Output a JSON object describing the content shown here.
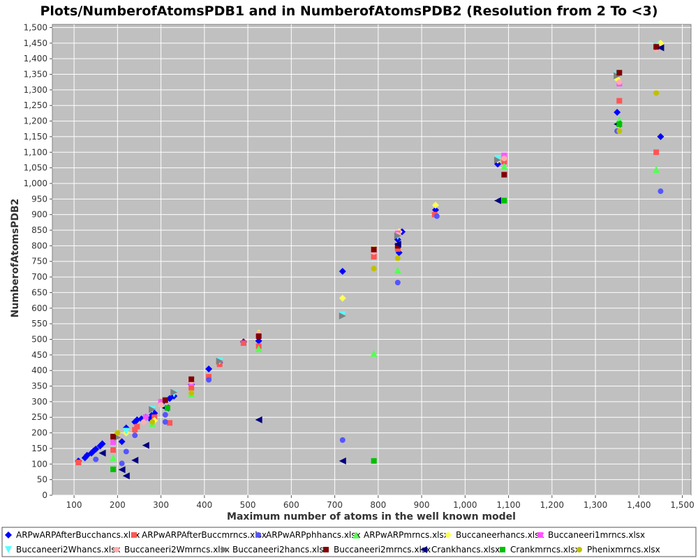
{
  "chart_data": {
    "type": "scatter",
    "title": "Plots/NumberofAtomsPDB1 and in NumberofAtomsPDB2 (Resolution from 2 To <3)",
    "xlabel": "Maximum number of atoms in the well known model",
    "ylabel": "NumberofAtomsPDB2",
    "xlim": [
      50,
      1520
    ],
    "ylim": [
      0,
      1510
    ],
    "xticks": [
      100,
      200,
      300,
      400,
      500,
      600,
      700,
      800,
      900,
      1000,
      1100,
      1200,
      1300,
      1400,
      1500
    ],
    "xtick_labels": [
      "100",
      "200",
      "300",
      "400",
      "500",
      "600",
      "700",
      "800",
      "900",
      "1,000",
      "1,100",
      "1,200",
      "1,300",
      "1,400",
      "1,500"
    ],
    "yticks": [
      0,
      50,
      100,
      150,
      200,
      250,
      300,
      350,
      400,
      450,
      500,
      550,
      600,
      650,
      700,
      750,
      800,
      850,
      900,
      950,
      1000,
      1050,
      1100,
      1150,
      1200,
      1250,
      1300,
      1350,
      1400,
      1450,
      1500
    ],
    "ytick_labels": [
      "0",
      "50",
      "100",
      "150",
      "200",
      "250",
      "300",
      "350",
      "400",
      "450",
      "500",
      "550",
      "600",
      "650",
      "700",
      "750",
      "800",
      "850",
      "900",
      "950",
      "1,000",
      "1,050",
      "1,100",
      "1,150",
      "1,200",
      "1,250",
      "1,300",
      "1,350",
      "1,400",
      "1,450",
      "1,500"
    ],
    "grid": true,
    "legend_position": "bottom",
    "plot_background": "#c0c0c0",
    "series": [
      {
        "name": "ARPwARPAfterBucchancs.xlsx",
        "color": "#0000ff",
        "marker": "diamond",
        "points": [
          [
            110,
            110
          ],
          [
            125,
            120
          ],
          [
            130,
            128
          ],
          [
            140,
            135
          ],
          [
            145,
            142
          ],
          [
            150,
            148
          ],
          [
            160,
            158
          ],
          [
            165,
            165
          ],
          [
            210,
            172
          ],
          [
            220,
            216
          ],
          [
            240,
            235
          ],
          [
            245,
            242
          ],
          [
            255,
            245
          ],
          [
            265,
            250
          ],
          [
            275,
            245
          ],
          [
            280,
            258
          ],
          [
            285,
            263
          ],
          [
            305,
            300
          ],
          [
            320,
            310
          ],
          [
            330,
            318
          ],
          [
            370,
            355
          ],
          [
            410,
            405
          ],
          [
            435,
            425
          ],
          [
            490,
            492
          ],
          [
            525,
            495
          ],
          [
            718,
            718
          ],
          [
            845,
            820
          ],
          [
            848,
            778
          ],
          [
            855,
            845
          ],
          [
            932,
            915
          ],
          [
            1075,
            1062
          ],
          [
            1350,
            1228
          ],
          [
            1450,
            1150
          ]
        ]
      },
      {
        "name": "ARPwARPAfterBuccmrncs.xlsx",
        "color": "#ff5555",
        "marker": "square",
        "points": [
          [
            110,
            105
          ],
          [
            190,
            145
          ],
          [
            240,
            210
          ],
          [
            245,
            220
          ],
          [
            285,
            250
          ],
          [
            320,
            232
          ],
          [
            370,
            345
          ],
          [
            410,
            380
          ],
          [
            435,
            420
          ],
          [
            490,
            488
          ],
          [
            525,
            478
          ],
          [
            790,
            765
          ],
          [
            845,
            790
          ],
          [
            930,
            900
          ],
          [
            1090,
            1070
          ],
          [
            1355,
            1265
          ],
          [
            1440,
            1100
          ]
        ]
      },
      {
        "name": "ARPwARPphhancs.xlsx",
        "color": "#5555ff",
        "marker": "circle",
        "points": [
          [
            150,
            115
          ],
          [
            210,
            102
          ],
          [
            220,
            140
          ],
          [
            240,
            192
          ],
          [
            310,
            258
          ],
          [
            310,
            235
          ],
          [
            410,
            370
          ],
          [
            718,
            177
          ],
          [
            845,
            682
          ],
          [
            935,
            895
          ],
          [
            1350,
            1168
          ],
          [
            1450,
            975
          ]
        ]
      },
      {
        "name": "ARPwARPmrncs.xlsx",
        "color": "#55ff55",
        "marker": "triangle-up",
        "points": [
          [
            190,
            120
          ],
          [
            280,
            230
          ],
          [
            370,
            325
          ],
          [
            525,
            470
          ],
          [
            790,
            455
          ],
          [
            845,
            722
          ],
          [
            1090,
            1055
          ],
          [
            1355,
            1205
          ],
          [
            1440,
            1045
          ]
        ]
      },
      {
        "name": "Buccaneerhancs.xlsx",
        "color": "#ffff55",
        "marker": "diamond",
        "points": [
          [
            200,
            200
          ],
          [
            220,
            200
          ],
          [
            285,
            240
          ],
          [
            300,
            300
          ],
          [
            370,
            370
          ],
          [
            525,
            520
          ],
          [
            718,
            632
          ],
          [
            790,
            790
          ],
          [
            848,
            845
          ],
          [
            932,
            930
          ],
          [
            1075,
            1075
          ],
          [
            1350,
            1335
          ],
          [
            1450,
            1450
          ]
        ]
      },
      {
        "name": "Buccaneeri1mrncs.xlsx",
        "color": "#ff55ff",
        "marker": "square",
        "points": [
          [
            190,
            170
          ],
          [
            265,
            250
          ],
          [
            300,
            300
          ],
          [
            370,
            360
          ],
          [
            525,
            515
          ],
          [
            790,
            785
          ],
          [
            845,
            840
          ],
          [
            1090,
            1090
          ],
          [
            1355,
            1320
          ],
          [
            1440,
            1435
          ]
        ]
      },
      {
        "name": "Buccaneeri2Whancs.xlsx",
        "color": "#55ffff",
        "marker": "triangle-down",
        "points": [
          [
            220,
            205
          ],
          [
            280,
            275
          ],
          [
            330,
            325
          ],
          [
            435,
            430
          ],
          [
            718,
            578
          ],
          [
            845,
            830
          ],
          [
            1075,
            1080
          ],
          [
            1350,
            1350
          ],
          [
            1440,
            1440
          ]
        ]
      },
      {
        "name": "Buccaneeri2Wmrncs.xlsx",
        "color": "#ffafaf",
        "marker": "circle",
        "points": [
          [
            200,
            195
          ],
          [
            260,
            235
          ],
          [
            300,
            290
          ],
          [
            370,
            365
          ],
          [
            525,
            518
          ],
          [
            790,
            780
          ],
          [
            845,
            835
          ],
          [
            1090,
            1080
          ],
          [
            1355,
            1325
          ],
          [
            1440,
            1430
          ]
        ]
      },
      {
        "name": "Buccaneeri2hancs.xlsx",
        "color": "#808080",
        "marker": "triangle-right",
        "points": [
          [
            200,
            185
          ],
          [
            280,
            275
          ],
          [
            330,
            330
          ],
          [
            435,
            430
          ],
          [
            718,
            575
          ],
          [
            845,
            832
          ],
          [
            1075,
            1075
          ],
          [
            1350,
            1345
          ],
          [
            1445,
            1438
          ]
        ]
      },
      {
        "name": "Buccaneeri2mrncs.xlsx",
        "color": "#800000",
        "marker": "square",
        "points": [
          [
            190,
            188
          ],
          [
            310,
            305
          ],
          [
            370,
            372
          ],
          [
            525,
            510
          ],
          [
            790,
            788
          ],
          [
            845,
            800
          ],
          [
            1090,
            1028
          ],
          [
            1355,
            1355
          ],
          [
            1440,
            1438
          ]
        ]
      },
      {
        "name": "Crankhancs.xlsx",
        "color": "#000080",
        "marker": "triangle-left",
        "points": [
          [
            165,
            135
          ],
          [
            210,
            82
          ],
          [
            220,
            62
          ],
          [
            240,
            112
          ],
          [
            265,
            160
          ],
          [
            310,
            280
          ],
          [
            525,
            242
          ],
          [
            718,
            110
          ],
          [
            845,
            805
          ],
          [
            1075,
            945
          ],
          [
            1350,
            1190
          ],
          [
            1450,
            1435
          ]
        ]
      },
      {
        "name": "Crankmrncs.xlsx",
        "color": "#00c000",
        "marker": "square",
        "points": [
          [
            190,
            83
          ],
          [
            315,
            280
          ],
          [
            790,
            110
          ],
          [
            1090,
            945
          ],
          [
            1355,
            1190
          ]
        ]
      },
      {
        "name": "Phenixmrncs.xlsx",
        "color": "#c0c000",
        "marker": "circle",
        "points": [
          [
            200,
            200
          ],
          [
            280,
            235
          ],
          [
            370,
            328
          ],
          [
            790,
            727
          ],
          [
            845,
            760
          ],
          [
            1355,
            1168
          ],
          [
            1440,
            1290
          ]
        ]
      }
    ]
  }
}
